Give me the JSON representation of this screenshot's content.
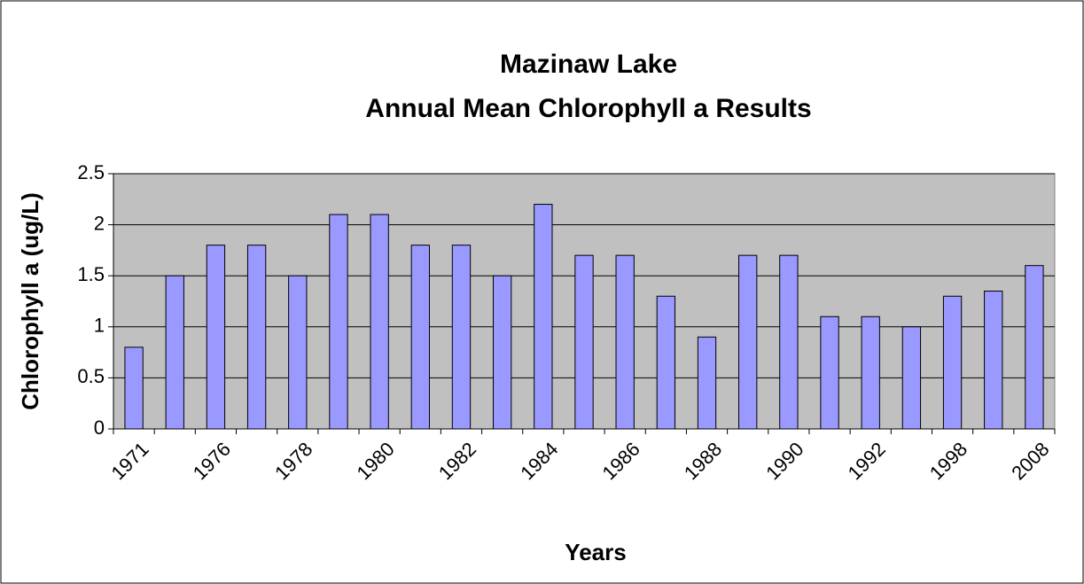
{
  "chart_data": {
    "type": "bar",
    "title": [
      "Mazinaw Lake",
      "Annual Mean Chlorophyll a Results"
    ],
    "x_label": "Years",
    "y_label": "Chlorophyll a (ug/L)",
    "categories": [
      "1971",
      null,
      "1976",
      null,
      "1978",
      null,
      "1980",
      null,
      "1982",
      null,
      "1984",
      null,
      "1986",
      null,
      "1988",
      null,
      "1990",
      null,
      "1992",
      null,
      "1998",
      null,
      "2008"
    ],
    "values": [
      0.8,
      1.5,
      1.8,
      1.8,
      1.5,
      2.1,
      2.1,
      1.8,
      1.8,
      1.5,
      2.2,
      1.7,
      1.7,
      1.3,
      0.9,
      1.7,
      1.7,
      1.1,
      1.1,
      1.0,
      1.3,
      1.35,
      1.6
    ],
    "color": "#9999ff",
    "ylim": [
      0,
      2.5
    ],
    "yticks": [
      0,
      0.5,
      1,
      1.5,
      2,
      2.5
    ],
    "grid": true
  }
}
